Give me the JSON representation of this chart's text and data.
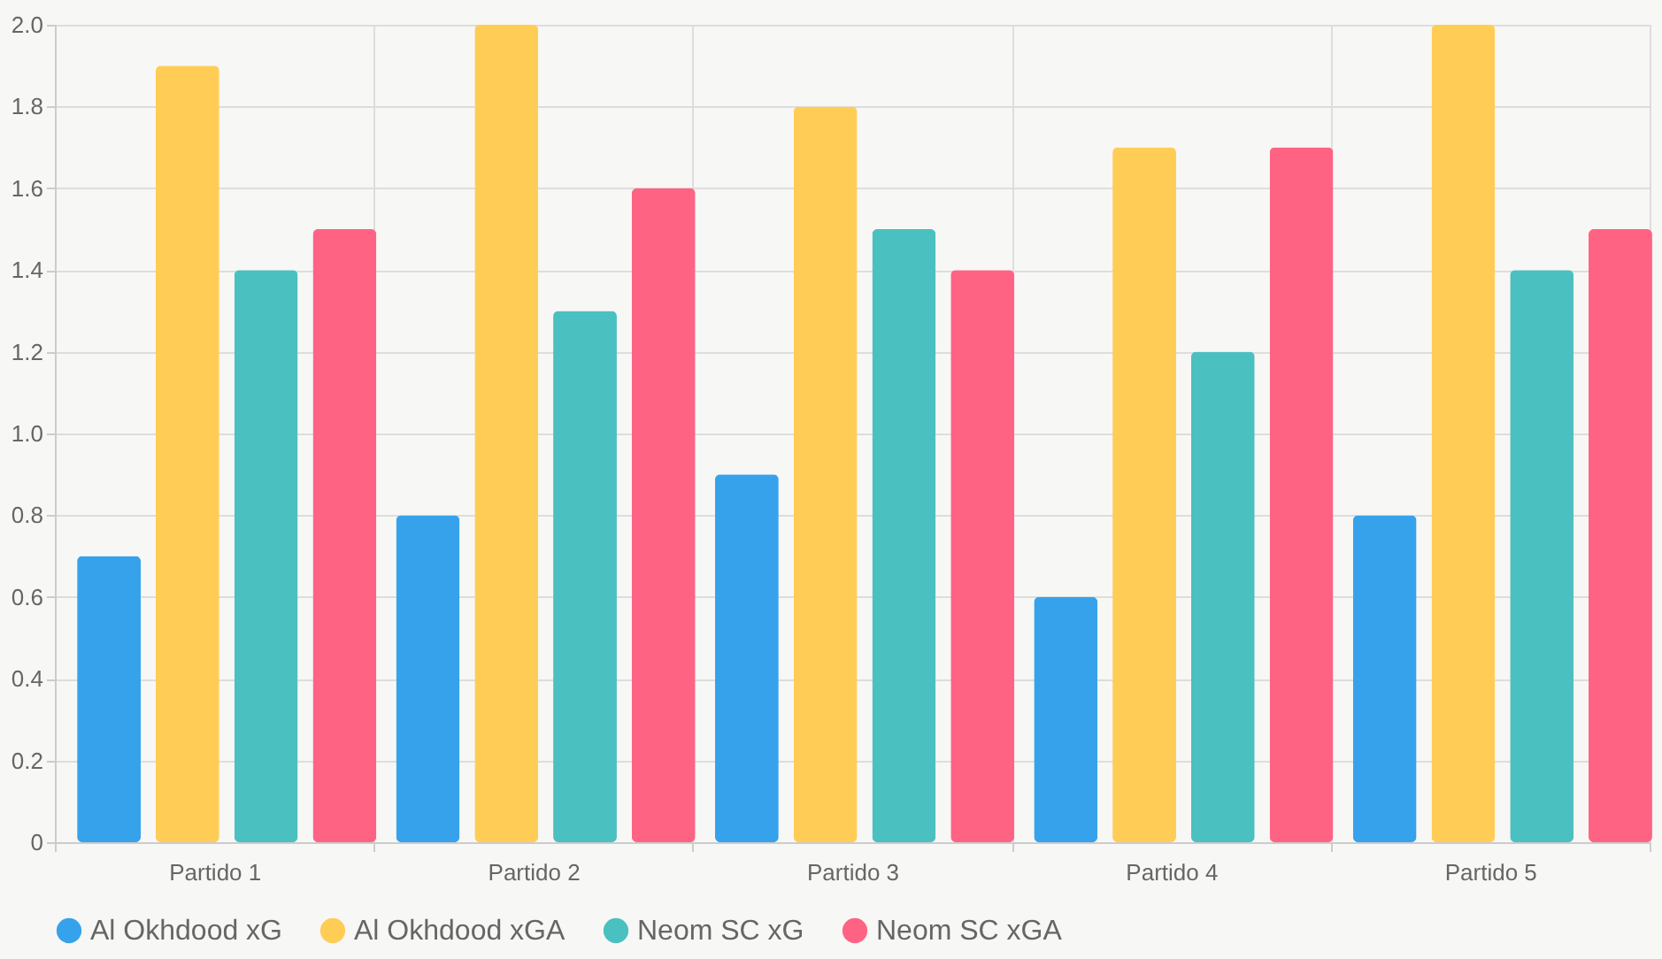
{
  "chart_data": {
    "type": "bar",
    "categories": [
      "Partido 1",
      "Partido 2",
      "Partido 3",
      "Partido 4",
      "Partido 5"
    ],
    "series": [
      {
        "name": "Al Okhdood xG",
        "color": "#36a2eb",
        "values": [
          0.7,
          0.8,
          0.9,
          0.6,
          0.8
        ]
      },
      {
        "name": "Al Okhdood xGA",
        "color": "#ffcd56",
        "values": [
          1.9,
          2.0,
          1.8,
          1.7,
          2.0
        ]
      },
      {
        "name": "Neom SC xG",
        "color": "#4bc0c0",
        "values": [
          1.4,
          1.3,
          1.5,
          1.2,
          1.4
        ]
      },
      {
        "name": "Neom SC xGA",
        "color": "#ff6384",
        "values": [
          1.5,
          1.6,
          1.4,
          1.7,
          1.5
        ]
      }
    ],
    "ylim": [
      0,
      2.0
    ],
    "yticks": [
      0,
      0.2,
      0.4,
      0.6,
      0.8,
      {
        "value": 1,
        "label": "1.0"
      },
      1.2,
      1.4,
      1.6,
      1.8,
      {
        "value": 2,
        "label": "2.0"
      }
    ],
    "grid": true,
    "legend": "bottom",
    "marker": "circle"
  }
}
